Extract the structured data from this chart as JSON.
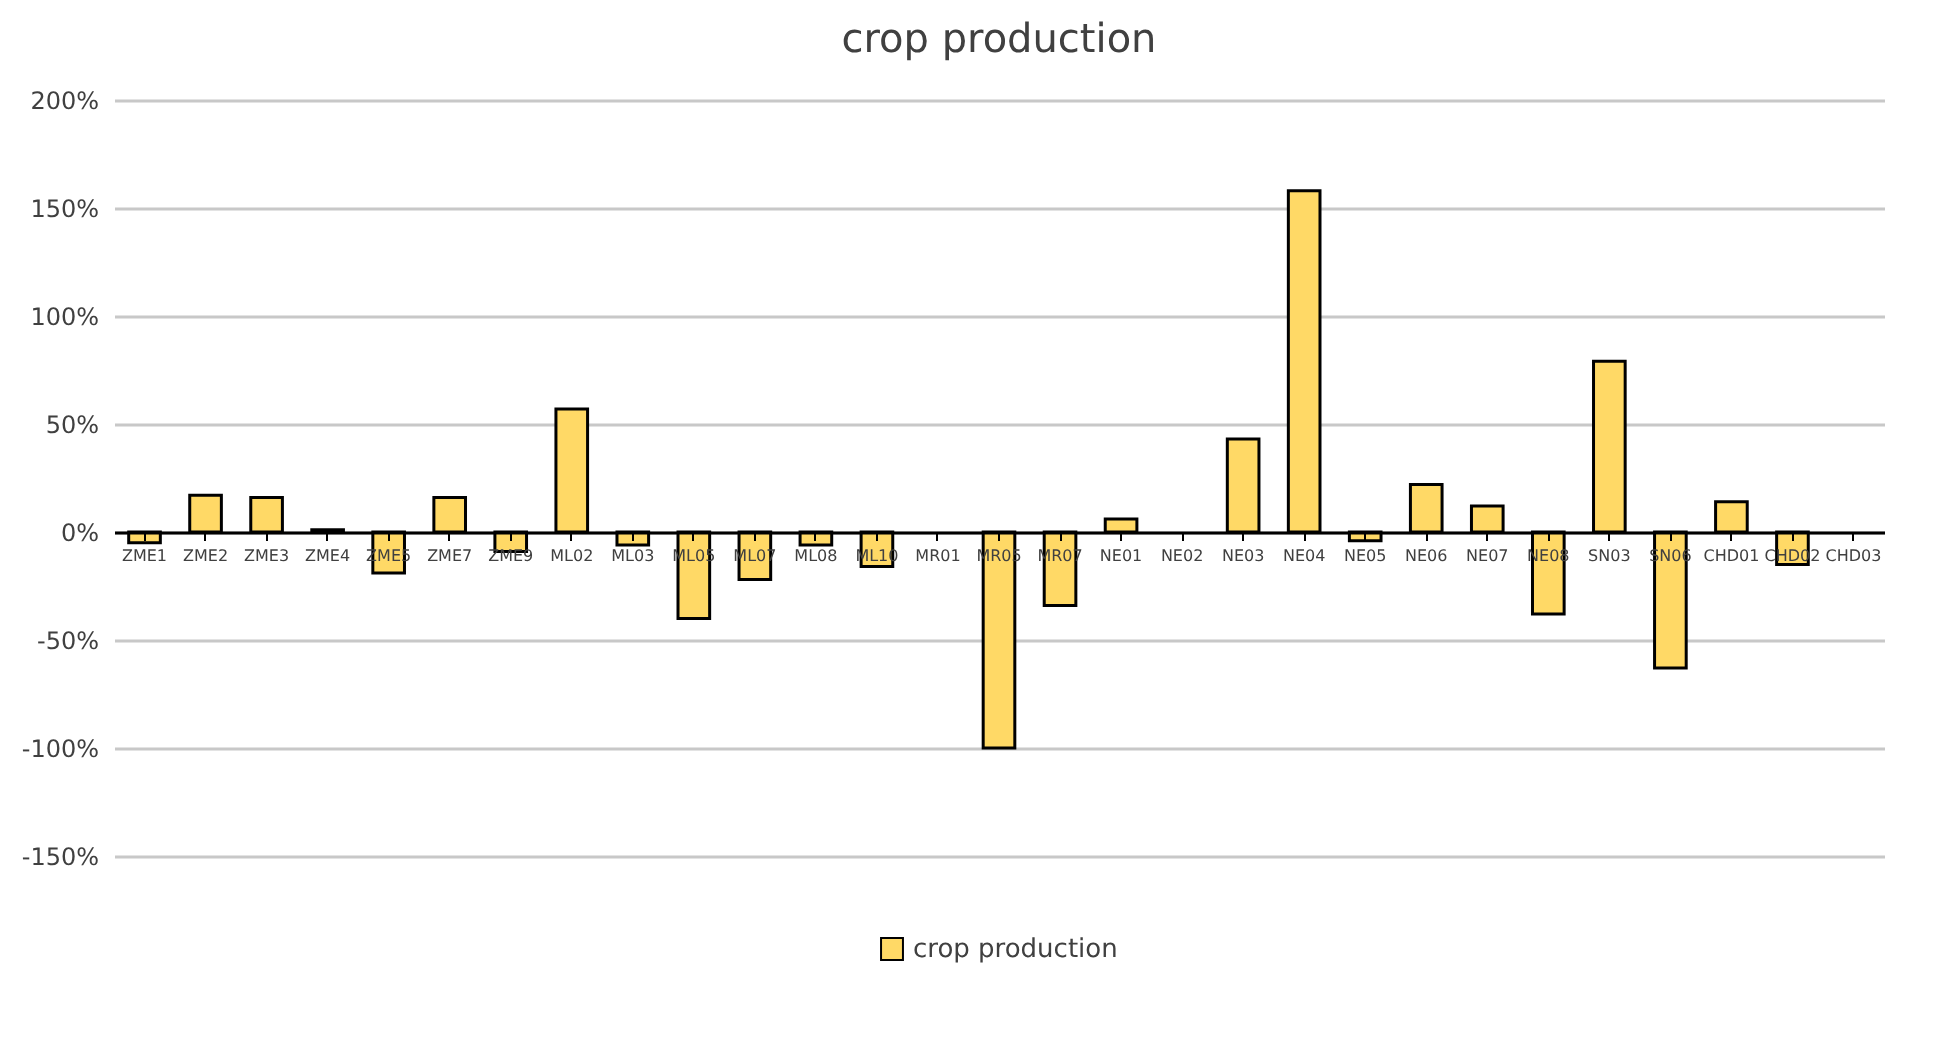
{
  "chart_data": {
    "type": "bar",
    "title": "crop production",
    "categories": [
      "ZME1",
      "ZME2",
      "ZME3",
      "ZME4",
      "ZME5",
      "ZME7",
      "ZME9",
      "ML02",
      "ML03",
      "ML05",
      "ML07",
      "ML08",
      "ML10",
      "MR01",
      "MR05",
      "MR07",
      "NE01",
      "NE02",
      "NE03",
      "NE04",
      "NE05",
      "NE06",
      "NE07",
      "NE08",
      "SN03",
      "SN06",
      "CHD01",
      "CHD02",
      "CHD03"
    ],
    "series": [
      {
        "name": "crop production",
        "color": "#ffd966",
        "values": [
          -5,
          17,
          16,
          1,
          -19,
          16,
          -9,
          57,
          -6,
          -40,
          -22,
          -6,
          -16,
          0,
          -100,
          -34,
          6,
          0,
          43,
          158,
          -4,
          22,
          12,
          -38,
          79,
          -63,
          14,
          -15,
          0
        ]
      }
    ],
    "ylim": [
      -150,
      200
    ],
    "yticks": [
      {
        "value": -150,
        "label": "-150%"
      },
      {
        "value": -100,
        "label": "-100%"
      },
      {
        "value": -50,
        "label": "-50%"
      },
      {
        "value": 0,
        "label": "0%"
      },
      {
        "value": 50,
        "label": "50%"
      },
      {
        "value": 100,
        "label": "100%"
      },
      {
        "value": 150,
        "label": "150%"
      },
      {
        "value": 200,
        "label": "200%"
      }
    ],
    "grid": "y",
    "legend": "bottom"
  }
}
